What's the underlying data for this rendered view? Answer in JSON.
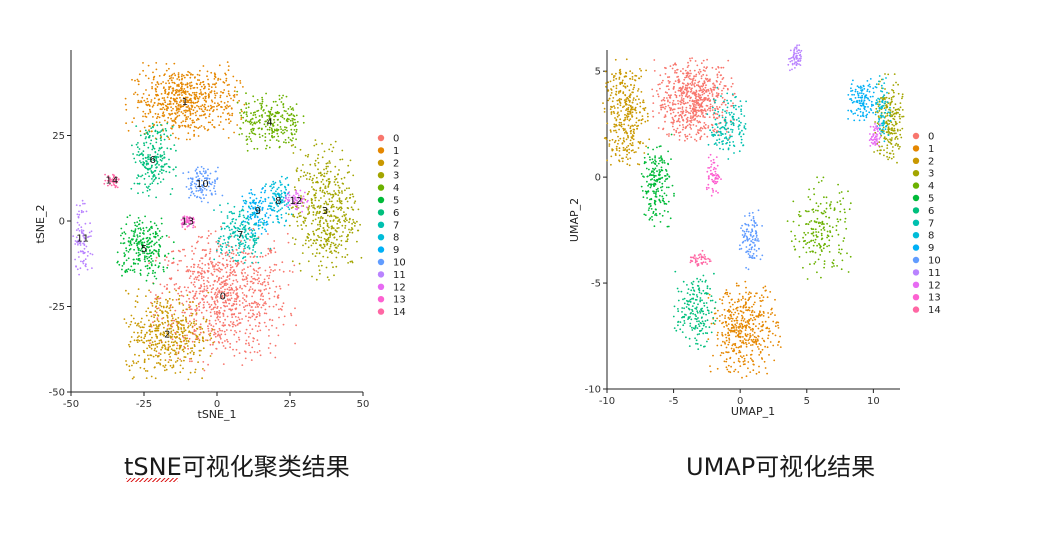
{
  "captions": {
    "tsne": "tSNE可视化聚类结果",
    "umap": "UMAP可视化结果"
  },
  "legend_labels": [
    "0",
    "1",
    "2",
    "3",
    "4",
    "5",
    "6",
    "7",
    "8",
    "9",
    "10",
    "11",
    "12",
    "13",
    "14"
  ],
  "cluster_colors": [
    "#F8766D",
    "#E58700",
    "#C99800",
    "#A3A500",
    "#6BB100",
    "#00BA38",
    "#00BF7D",
    "#00C0AF",
    "#00BCD8",
    "#00B0F6",
    "#619CFF",
    "#B983FF",
    "#E76BF3",
    "#FD61D1",
    "#FF67A4"
  ],
  "chart_data": [
    {
      "type": "scatter",
      "title": "",
      "xlabel": "tSNE_1",
      "ylabel": "tSNE_2",
      "xlim": [
        -50,
        50
      ],
      "ylim": [
        -50,
        50
      ],
      "xticks": [
        "-50",
        "-25",
        "0",
        "25",
        "50"
      ],
      "yticks": [
        "-50",
        "-25",
        "0",
        "25"
      ],
      "grid": false,
      "legend": "right",
      "clusters": [
        {
          "name": "0",
          "label": "0",
          "cx": 2,
          "cy": -22,
          "rx": 22,
          "ry": 18,
          "n": 900
        },
        {
          "name": "1",
          "label": "1",
          "cx": -11,
          "cy": 35,
          "rx": 18,
          "ry": 10,
          "n": 650
        },
        {
          "name": "2",
          "label": "2",
          "cx": -17,
          "cy": -33,
          "rx": 14,
          "ry": 12,
          "n": 450
        },
        {
          "name": "3",
          "label": "3",
          "cx": 37,
          "cy": 3,
          "rx": 11,
          "ry": 18,
          "n": 500
        },
        {
          "name": "4",
          "label": "4",
          "cx": 18,
          "cy": 29,
          "rx": 11,
          "ry": 8,
          "n": 260
        },
        {
          "name": "5",
          "label": "5",
          "cx": -25,
          "cy": -8,
          "rx": 9,
          "ry": 9,
          "n": 260
        },
        {
          "name": "6",
          "label": "6",
          "cx": -22,
          "cy": 18,
          "rx": 7,
          "ry": 10,
          "n": 220
        },
        {
          "name": "7",
          "label": "7",
          "cx": 8,
          "cy": -4,
          "rx": 8,
          "ry": 9,
          "n": 200
        },
        {
          "name": "8",
          "label": "8",
          "cx": 21,
          "cy": 6,
          "rx": 4,
          "ry": 7,
          "n": 110
        },
        {
          "name": "9",
          "label": "9",
          "cx": 14,
          "cy": 3,
          "rx": 5,
          "ry": 6,
          "n": 110
        },
        {
          "name": "10",
          "label": "10",
          "cx": -5,
          "cy": 11,
          "rx": 6,
          "ry": 5,
          "n": 110
        },
        {
          "name": "11",
          "label": "11",
          "cx": -46,
          "cy": -5,
          "rx": 3,
          "ry": 11,
          "n": 90
        },
        {
          "name": "12",
          "label": "12",
          "cx": 27,
          "cy": 6,
          "rx": 4,
          "ry": 3,
          "n": 60
        },
        {
          "name": "13",
          "label": "13",
          "cx": -10,
          "cy": 0,
          "rx": 3,
          "ry": 2,
          "n": 45
        },
        {
          "name": "14",
          "label": "14",
          "cx": -36,
          "cy": 12,
          "rx": 2.5,
          "ry": 2,
          "n": 40
        }
      ]
    },
    {
      "type": "scatter",
      "title": "",
      "xlabel": "UMAP_1",
      "ylabel": "UMAP_2",
      "xlim": [
        -10,
        12
      ],
      "ylim": [
        -10,
        6
      ],
      "xticks": [
        "-10",
        "-5",
        "0",
        "5",
        "10"
      ],
      "yticks": [
        "-10",
        "-5",
        "0",
        "5"
      ],
      "grid": false,
      "legend": "right",
      "clusters": [
        {
          "name": "0",
          "cx": -3.5,
          "cy": 3.6,
          "rx": 2.8,
          "ry": 1.8,
          "n": 650
        },
        {
          "name": "1",
          "cx": 0.3,
          "cy": -7.2,
          "rx": 2.4,
          "ry": 2.0,
          "n": 450
        },
        {
          "name": "2",
          "cx": -8.6,
          "cy": 3.0,
          "rx": 1.6,
          "ry": 2.4,
          "n": 350
        },
        {
          "name": "3",
          "cx": 11.2,
          "cy": 2.6,
          "rx": 1.0,
          "ry": 2.0,
          "n": 220
        },
        {
          "name": "4",
          "cx": 6.0,
          "cy": -2.5,
          "rx": 2.2,
          "ry": 2.2,
          "n": 200
        },
        {
          "name": "5",
          "cx": -6.3,
          "cy": -0.3,
          "rx": 1.2,
          "ry": 1.8,
          "n": 200
        },
        {
          "name": "6",
          "cx": -3.4,
          "cy": -6.3,
          "rx": 1.4,
          "ry": 1.6,
          "n": 190
        },
        {
          "name": "7",
          "cx": -0.9,
          "cy": 2.5,
          "rx": 1.4,
          "ry": 1.5,
          "n": 150
        },
        {
          "name": "8",
          "cx": 10.7,
          "cy": 3.2,
          "rx": 0.6,
          "ry": 1.4,
          "n": 80
        },
        {
          "name": "9",
          "cx": 9.2,
          "cy": 3.6,
          "rx": 1.0,
          "ry": 1.0,
          "n": 120
        },
        {
          "name": "10",
          "cx": 0.8,
          "cy": -3.0,
          "rx": 0.8,
          "ry": 1.3,
          "n": 110
        },
        {
          "name": "11",
          "cx": 4.1,
          "cy": 5.6,
          "rx": 0.5,
          "ry": 0.6,
          "n": 60
        },
        {
          "name": "12",
          "cx": 10.1,
          "cy": 1.9,
          "rx": 0.4,
          "ry": 0.6,
          "n": 50
        },
        {
          "name": "13",
          "cx": -2.0,
          "cy": 0.1,
          "rx": 0.5,
          "ry": 0.9,
          "n": 60
        },
        {
          "name": "14",
          "cx": -3.0,
          "cy": -3.9,
          "rx": 0.8,
          "ry": 0.4,
          "n": 45
        }
      ]
    }
  ]
}
